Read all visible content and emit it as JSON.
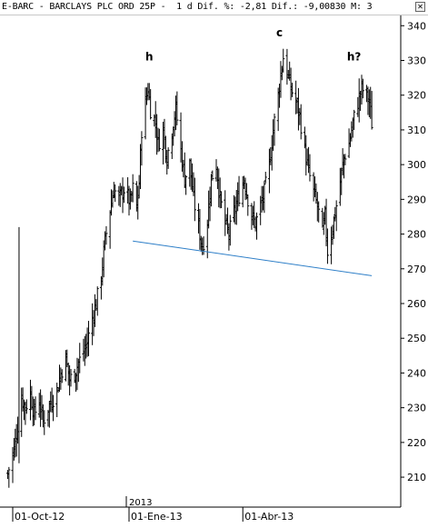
{
  "window": {
    "title": "E-BARC - BARCLAYS PLC ORD 25P -  1 d Dif. %: -2,81 Dif.: -9,00830 M: 3",
    "close_icon": "close-icon"
  },
  "chart_data": {
    "type": "ohlc",
    "ylim": [
      204,
      344
    ],
    "y_ticks": [
      210,
      220,
      230,
      240,
      250,
      260,
      270,
      280,
      290,
      300,
      310,
      320,
      330,
      340
    ],
    "y_tick_labels": [
      "210",
      "220",
      "230",
      "240",
      "250",
      "260",
      "270",
      "280",
      "290",
      "300",
      "310",
      "320",
      "330",
      "340"
    ],
    "x_period": [
      "2012-10-01",
      "2013-05-31"
    ],
    "x_ticks": [
      {
        "date": "2012-10-01",
        "label": "01-Oct-12"
      },
      {
        "date": "2013-01-01",
        "label": "01-Ene-13"
      },
      {
        "date": "2013-04-01",
        "label": "01-Abr-13"
      }
    ],
    "year_marker": {
      "date": "2013-01-01",
      "label": "2013"
    },
    "close_path": [
      [
        "2012-09-27",
        211
      ],
      [
        "2012-10-02",
        218
      ],
      [
        "2012-10-05",
        225
      ],
      [
        "2012-10-08",
        233
      ],
      [
        "2012-10-11",
        230
      ],
      [
        "2012-10-15",
        234
      ],
      [
        "2012-10-18",
        228
      ],
      [
        "2012-10-22",
        232
      ],
      [
        "2012-10-25",
        226
      ],
      [
        "2012-10-29",
        230
      ],
      [
        "2012-11-01",
        232
      ],
      [
        "2012-11-05",
        235
      ],
      [
        "2012-11-08",
        240
      ],
      [
        "2012-11-12",
        244
      ],
      [
        "2012-11-15",
        238
      ],
      [
        "2012-11-19",
        240
      ],
      [
        "2012-11-22",
        243
      ],
      [
        "2012-11-26",
        246
      ],
      [
        "2012-11-29",
        249
      ],
      [
        "2012-12-03",
        256
      ],
      [
        "2012-12-06",
        260
      ],
      [
        "2012-12-10",
        268
      ],
      [
        "2012-12-13",
        278
      ],
      [
        "2012-12-17",
        287
      ],
      [
        "2012-12-20",
        293
      ],
      [
        "2012-12-24",
        290
      ],
      [
        "2012-12-28",
        293
      ],
      [
        "2013-01-02",
        289
      ],
      [
        "2013-01-04",
        293
      ],
      [
        "2013-01-07",
        287
      ],
      [
        "2013-01-09",
        295
      ],
      [
        "2013-01-11",
        310
      ],
      [
        "2013-01-14",
        318
      ],
      [
        "2013-01-16",
        322
      ],
      [
        "2013-01-18",
        316
      ],
      [
        "2013-01-22",
        312
      ],
      [
        "2013-01-24",
        306
      ],
      [
        "2013-01-28",
        310
      ],
      [
        "2013-01-31",
        302
      ],
      [
        "2013-02-04",
        310
      ],
      [
        "2013-02-07",
        316
      ],
      [
        "2013-02-11",
        304
      ],
      [
        "2013-02-14",
        296
      ],
      [
        "2013-02-18",
        300
      ],
      [
        "2013-02-21",
        290
      ],
      [
        "2013-02-25",
        282
      ],
      [
        "2013-02-28",
        276
      ],
      [
        "2013-03-04",
        284
      ],
      [
        "2013-03-07",
        296
      ],
      [
        "2013-03-11",
        300
      ],
      [
        "2013-03-14",
        290
      ],
      [
        "2013-03-18",
        283
      ],
      [
        "2013-03-21",
        280
      ],
      [
        "2013-03-25",
        286
      ],
      [
        "2013-03-28",
        290
      ],
      [
        "2013-04-02",
        296
      ],
      [
        "2013-04-04",
        292
      ],
      [
        "2013-04-08",
        285
      ],
      [
        "2013-04-11",
        283
      ],
      [
        "2013-04-15",
        288
      ],
      [
        "2013-04-18",
        292
      ],
      [
        "2013-04-22",
        300
      ],
      [
        "2013-04-25",
        310
      ],
      [
        "2013-04-29",
        320
      ],
      [
        "2013-05-01",
        326
      ],
      [
        "2013-05-03",
        331
      ],
      [
        "2013-05-07",
        325
      ],
      [
        "2013-05-09",
        322
      ],
      [
        "2013-05-13",
        318
      ],
      [
        "2013-05-16",
        314
      ],
      [
        "2013-05-20",
        304
      ],
      [
        "2013-05-23",
        298
      ],
      [
        "2013-05-27",
        292
      ],
      [
        "2013-05-30",
        288
      ],
      [
        "2013-06-03",
        280
      ],
      [
        "2013-06-05",
        285
      ],
      [
        "2013-06-07",
        275
      ],
      [
        "2013-06-11",
        282
      ],
      [
        "2013-06-13",
        286
      ],
      [
        "2013-06-17",
        295
      ],
      [
        "2013-06-20",
        302
      ],
      [
        "2013-06-24",
        306
      ],
      [
        "2013-06-27",
        312
      ],
      [
        "2013-07-01",
        318
      ],
      [
        "2013-07-04",
        322
      ],
      [
        "2013-07-08",
        320
      ],
      [
        "2013-07-10",
        318
      ],
      [
        "2013-07-12",
        312
      ]
    ],
    "events": [
      {
        "date": "2012-10-06",
        "high": 282,
        "low": 214
      }
    ],
    "trendline": {
      "from": [
        "2013-01-04",
        278
      ],
      "to": [
        "2013-07-12",
        268
      ],
      "color": "#2e7fc8"
    },
    "annotations": [
      {
        "text": "h",
        "date": "2013-01-17",
        "y": 330
      },
      {
        "text": "c",
        "date": "2013-04-30",
        "y": 337
      },
      {
        "text": "h?",
        "date": "2013-06-28",
        "y": 330
      }
    ],
    "colors": {
      "bars": "#000000",
      "trendline": "#2e7fc8",
      "grid": "#bbbbbb"
    }
  }
}
